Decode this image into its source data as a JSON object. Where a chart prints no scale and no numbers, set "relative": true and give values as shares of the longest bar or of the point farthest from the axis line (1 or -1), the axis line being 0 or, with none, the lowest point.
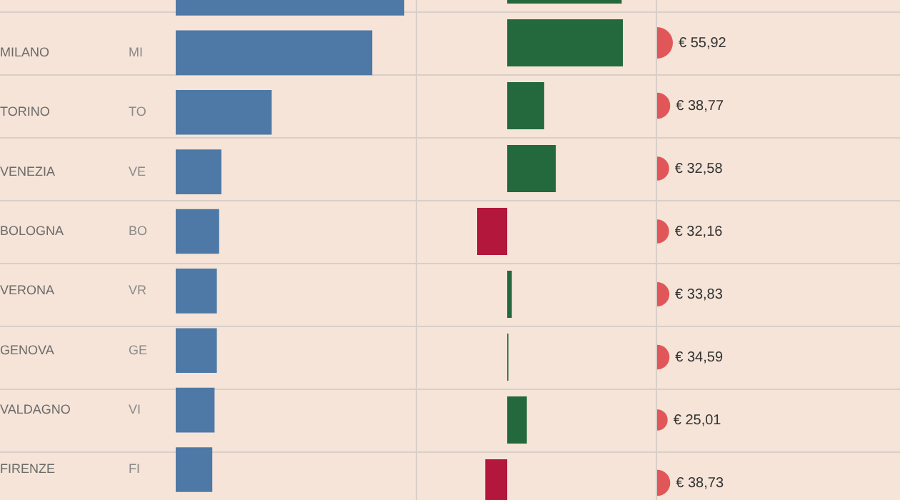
{
  "chart_data": [
    {
      "type": "bar",
      "orientation": "horizontal",
      "relative": true,
      "categories": [
        null,
        "MILANO",
        "TORINO",
        "VENEZIA",
        "BOLOGNA",
        "VERONA",
        "GENOVA",
        "VALDAGNO",
        "FIRENZE"
      ],
      "y2_categories": [
        null,
        "MI",
        "TO",
        "VE",
        "BO",
        "VR",
        "GE",
        "VI",
        "FI"
      ],
      "values": [
        1,
        0.86,
        0.42,
        0.2,
        0.19,
        0.18,
        0.18,
        0.17,
        0.16
      ],
      "color": "#4e79a7"
    },
    {
      "type": "bar",
      "orientation": "horizontal",
      "relative": true,
      "categories": [
        null,
        null,
        null,
        null,
        null,
        null,
        null,
        null,
        null
      ],
      "values": [
        0.99,
        1,
        0.32,
        0.42,
        -0.26,
        0.04,
        0.01,
        0.17,
        -0.19
      ],
      "colors": [
        "#24693d",
        "#24693d",
        "#24693d",
        "#24693d",
        "#b3173b",
        "#24693d",
        "#24693d",
        "#24693d",
        "#b3173b"
      ]
    },
    {
      "type": "other",
      "categories": [
        null,
        null,
        null,
        null,
        null,
        null,
        null,
        null,
        null
      ],
      "values": [
        null,
        55.92,
        38.77,
        32.58,
        32.16,
        33.83,
        34.59,
        25.01,
        38.73
      ],
      "value_labels": [
        null,
        "€ 55,92",
        "€ 38,77",
        "€ 32,58",
        "€ 32,16",
        "€ 33,83",
        "€ 34,59",
        "€ 25,01",
        "€ 38,73"
      ],
      "color": "#e15759"
    }
  ]
}
